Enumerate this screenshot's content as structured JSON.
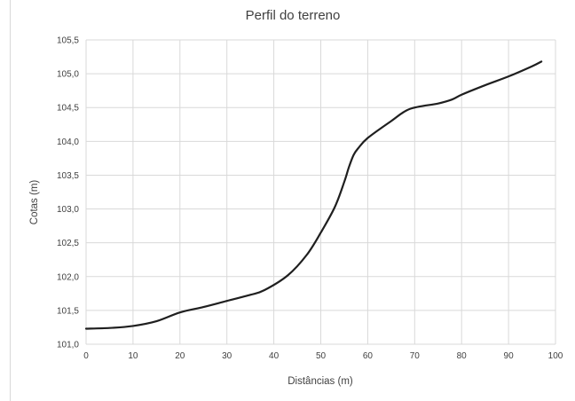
{
  "chart_data": {
    "type": "line",
    "title": "Perfil do terreno",
    "xlabel": "Distâncias (m)",
    "ylabel": "Cotas (m)",
    "xlim": [
      0,
      100
    ],
    "ylim": [
      101.0,
      105.5
    ],
    "x_ticks": [
      "0",
      "10",
      "20",
      "30",
      "40",
      "50",
      "60",
      "70",
      "80",
      "90",
      "100"
    ],
    "y_ticks": [
      "101,0",
      "101,5",
      "102,0",
      "102,5",
      "103,0",
      "103,5",
      "104,0",
      "104,5",
      "105,0",
      "105,5"
    ],
    "grid": true,
    "legend": "none",
    "line_color": "#1f1f1f",
    "series": [
      {
        "x": [
          0,
          5,
          10,
          15,
          20,
          25,
          30,
          35,
          38,
          43,
          47,
          50,
          53,
          55,
          56,
          57,
          58,
          60,
          65,
          69,
          75,
          78,
          80,
          85,
          90,
          95,
          97
        ],
        "y": [
          101.23,
          101.24,
          101.27,
          101.34,
          101.47,
          101.55,
          101.64,
          101.73,
          101.8,
          102.02,
          102.32,
          102.65,
          103.03,
          103.4,
          103.62,
          103.8,
          103.9,
          104.05,
          104.3,
          104.48,
          104.56,
          104.62,
          104.69,
          104.83,
          104.96,
          105.11,
          105.18
        ]
      }
    ]
  }
}
